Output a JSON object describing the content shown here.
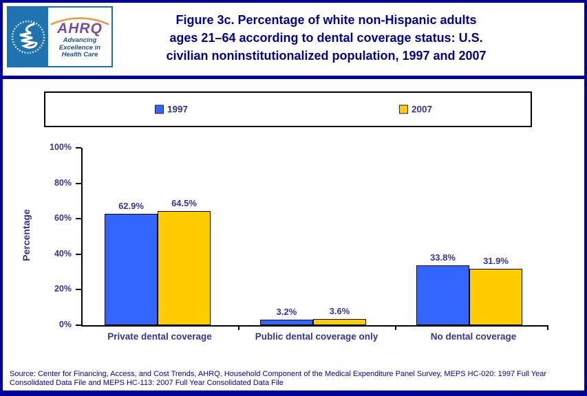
{
  "header": {
    "logo": {
      "acronym": "AHRQ",
      "tagline_lines": [
        "Advancing",
        "Excellence in",
        "Health Care"
      ]
    },
    "title_lines": [
      "Figure 3c. Percentage of white non-Hispanic adults",
      "ages 21–64 according to dental coverage status: U.S.",
      "civilian noninstitutionalized population, 1997 and 2007"
    ]
  },
  "chart_data": {
    "type": "bar",
    "title": "Figure 3c. Percentage of white non-Hispanic adults ages 21–64 according to dental coverage status: U.S. civilian noninstitutionalized population, 1997 and 2007",
    "categories": [
      "Private dental coverage",
      "Public dental coverage only",
      "No dental coverage"
    ],
    "series": [
      {
        "name": "1997",
        "color": "#3366FF",
        "values": [
          62.9,
          3.2,
          33.8
        ]
      },
      {
        "name": "2007",
        "color": "#FFCC00",
        "values": [
          64.5,
          3.6,
          31.9
        ]
      }
    ],
    "value_labels": [
      [
        "62.9%",
        "3.2%",
        "33.8%"
      ],
      [
        "64.5%",
        "3.6%",
        "31.9%"
      ]
    ],
    "xlabel": "",
    "ylabel": "Percentage",
    "ylim": [
      0,
      100
    ],
    "ytick_step": 20,
    "ytick_labels": [
      "0%",
      "20%",
      "40%",
      "60%",
      "80%",
      "100%"
    ],
    "grid": false,
    "legend_position": "top"
  },
  "source": "Source: Center for Financing, Access, and Cost Trends, AHRQ, Household Component of the Medical Expenditure Panel Survey, MEPS HC-020: 1997 Full Year Consolidated Data File and MEPS HC-113: 2007 Full Year Consolidated Data File",
  "colors": {
    "frame": "#000099",
    "title": "#000099",
    "labels": "#333399",
    "axis": "#000000",
    "source": "#0000A0",
    "series_1997": "#3366FF",
    "series_2007": "#FFCC00"
  }
}
